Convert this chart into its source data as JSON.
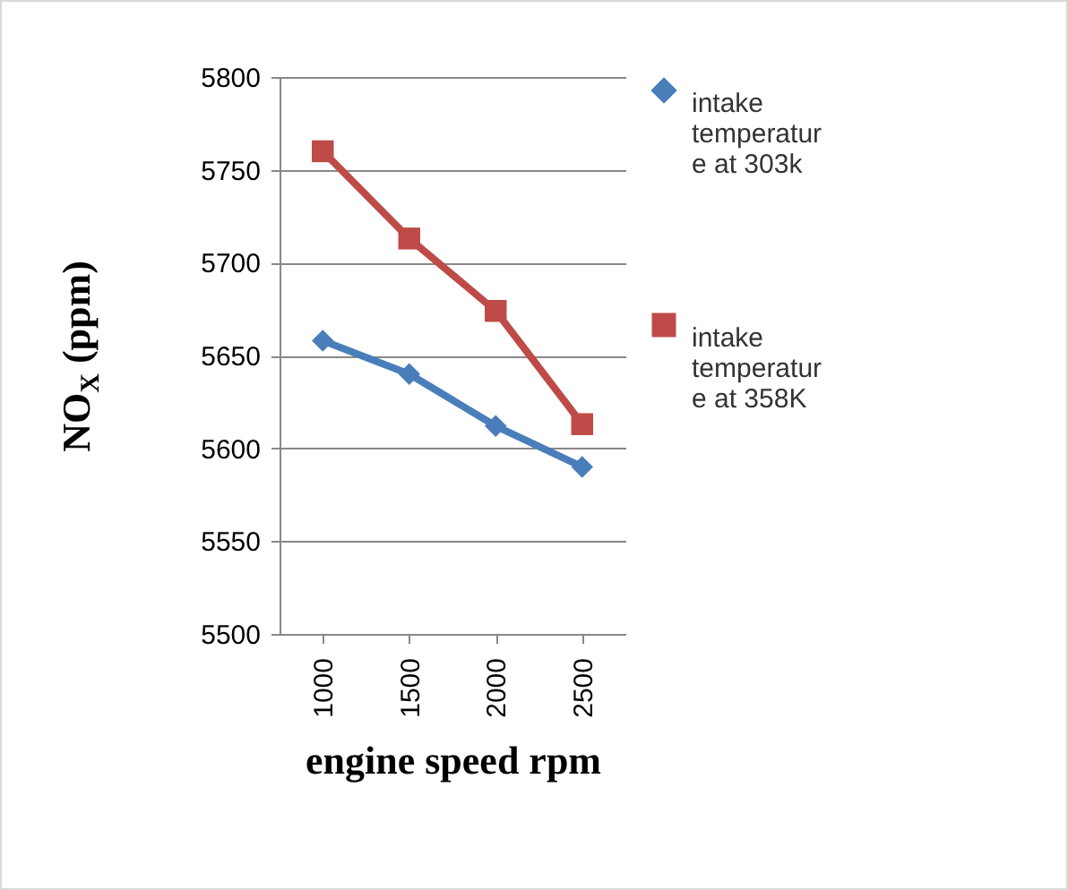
{
  "chart_data": {
    "type": "line",
    "xlabel": "engine speed rpm",
    "ylabel": "NO$_{X}$ (ppm)",
    "categories": [
      "1000",
      "1500",
      "2000",
      "2500"
    ],
    "series": [
      {
        "name": "intake temperature at 303k",
        "color": "#4a7ebb",
        "marker": "diamond",
        "values": [
          5658,
          5640,
          5612,
          5590
        ]
      },
      {
        "name": "intake temperature at 358K",
        "color": "#be4b48",
        "marker": "square",
        "values": [
          5760,
          5713,
          5674,
          5613
        ]
      }
    ],
    "ylim": [
      5500,
      5800
    ],
    "yticks": [
      5500,
      5550,
      5600,
      5650,
      5700,
      5750,
      5800
    ],
    "grid": "y",
    "legend": "right"
  }
}
